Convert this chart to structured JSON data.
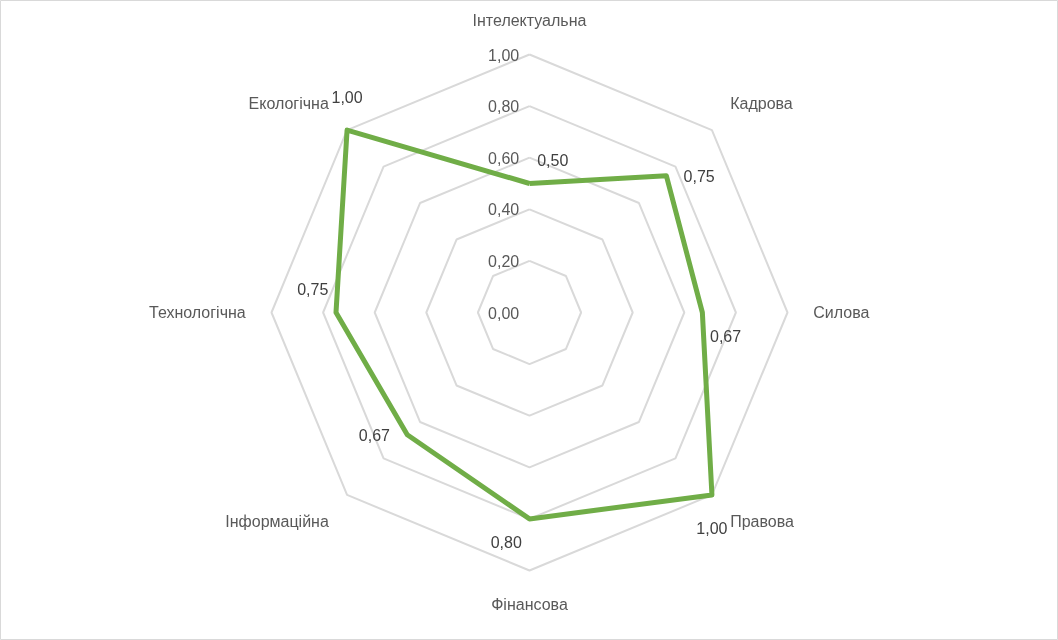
{
  "chart_data": {
    "type": "radar",
    "categories": [
      "Інтелектуальна",
      "Кадрова",
      "Силова",
      "Правова",
      "Фінансова",
      "Інформаційна",
      "Технологічна",
      "Екологічна"
    ],
    "series": [
      {
        "color": "#70ad47",
        "values": [
          0.5,
          0.75,
          0.67,
          1.0,
          0.8,
          0.67,
          0.75,
          1.0
        ],
        "value_labels": [
          "0,50",
          "0,75",
          "0,67",
          "1,00",
          "0,80",
          "0,67",
          "0,75",
          "1,00"
        ]
      }
    ],
    "ylim": [
      0,
      1
    ],
    "yticks": [
      {
        "value": 0,
        "label": "0,00"
      },
      {
        "value": 0.2,
        "label": "0,20"
      },
      {
        "value": 0.4,
        "label": "0,40"
      },
      {
        "value": 0.6,
        "label": "0,60"
      },
      {
        "value": 0.8,
        "label": "0,80"
      },
      {
        "value": 1,
        "label": "1,00"
      }
    ],
    "grid": true
  }
}
